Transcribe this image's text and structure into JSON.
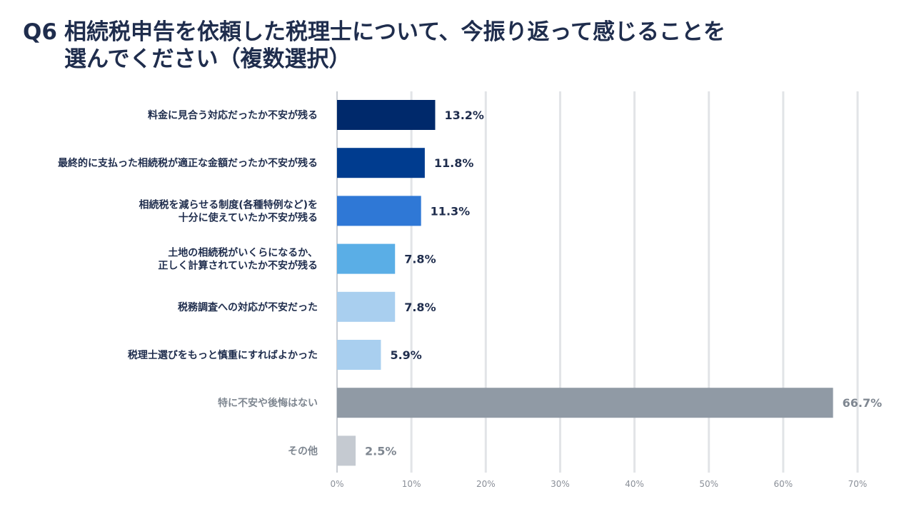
{
  "title": {
    "question_no": "Q6",
    "line1": "相続税申告を依頼した税理士について、今振り返って感じることを",
    "line2": "選んでください（複数選択）"
  },
  "chart_data": {
    "type": "bar",
    "orientation": "horizontal",
    "categories": [
      [
        "料金に見合う対応だったか不安が残る"
      ],
      [
        "最終的に支払った相続税が適正な金額だったか不安が残る"
      ],
      [
        "相続税を減らせる制度(各種特例など)を",
        "十分に使えていたか不安が残る"
      ],
      [
        "土地の相続税がいくらになるか、",
        "正しく計算されていたか不安が残る"
      ],
      [
        "税務調査への対応が不安だった"
      ],
      [
        "税理士選びをもっと慎重にすればよかった"
      ],
      [
        "特に不安や後悔はない"
      ],
      [
        "その他"
      ]
    ],
    "values": [
      13.2,
      11.8,
      11.3,
      7.8,
      7.8,
      5.9,
      66.7,
      2.5
    ],
    "value_labels": [
      "13.2%",
      "11.8%",
      "11.3%",
      "7.8%",
      "7.8%",
      "5.9%",
      "66.7%",
      "2.5%"
    ],
    "bar_colors": [
      "#00296b",
      "#003c8f",
      "#2f78d6",
      "#5aaee6",
      "#a9cfef",
      "#a9cfef",
      "#909aa5",
      "#c5cad1"
    ],
    "label_colors": [
      "#1f2d4d",
      "#1f2d4d",
      "#1f2d4d",
      "#1f2d4d",
      "#1f2d4d",
      "#1f2d4d",
      "#7f8791",
      "#7f8791"
    ],
    "xlim": [
      0,
      70
    ],
    "x_ticks": [
      0,
      10,
      20,
      30,
      40,
      50,
      60,
      70
    ],
    "x_tick_labels": [
      "0%",
      "10%",
      "20%",
      "30%",
      "40%",
      "50%",
      "60%",
      "70%"
    ],
    "grid": true,
    "xlabel": "",
    "ylabel": ""
  }
}
